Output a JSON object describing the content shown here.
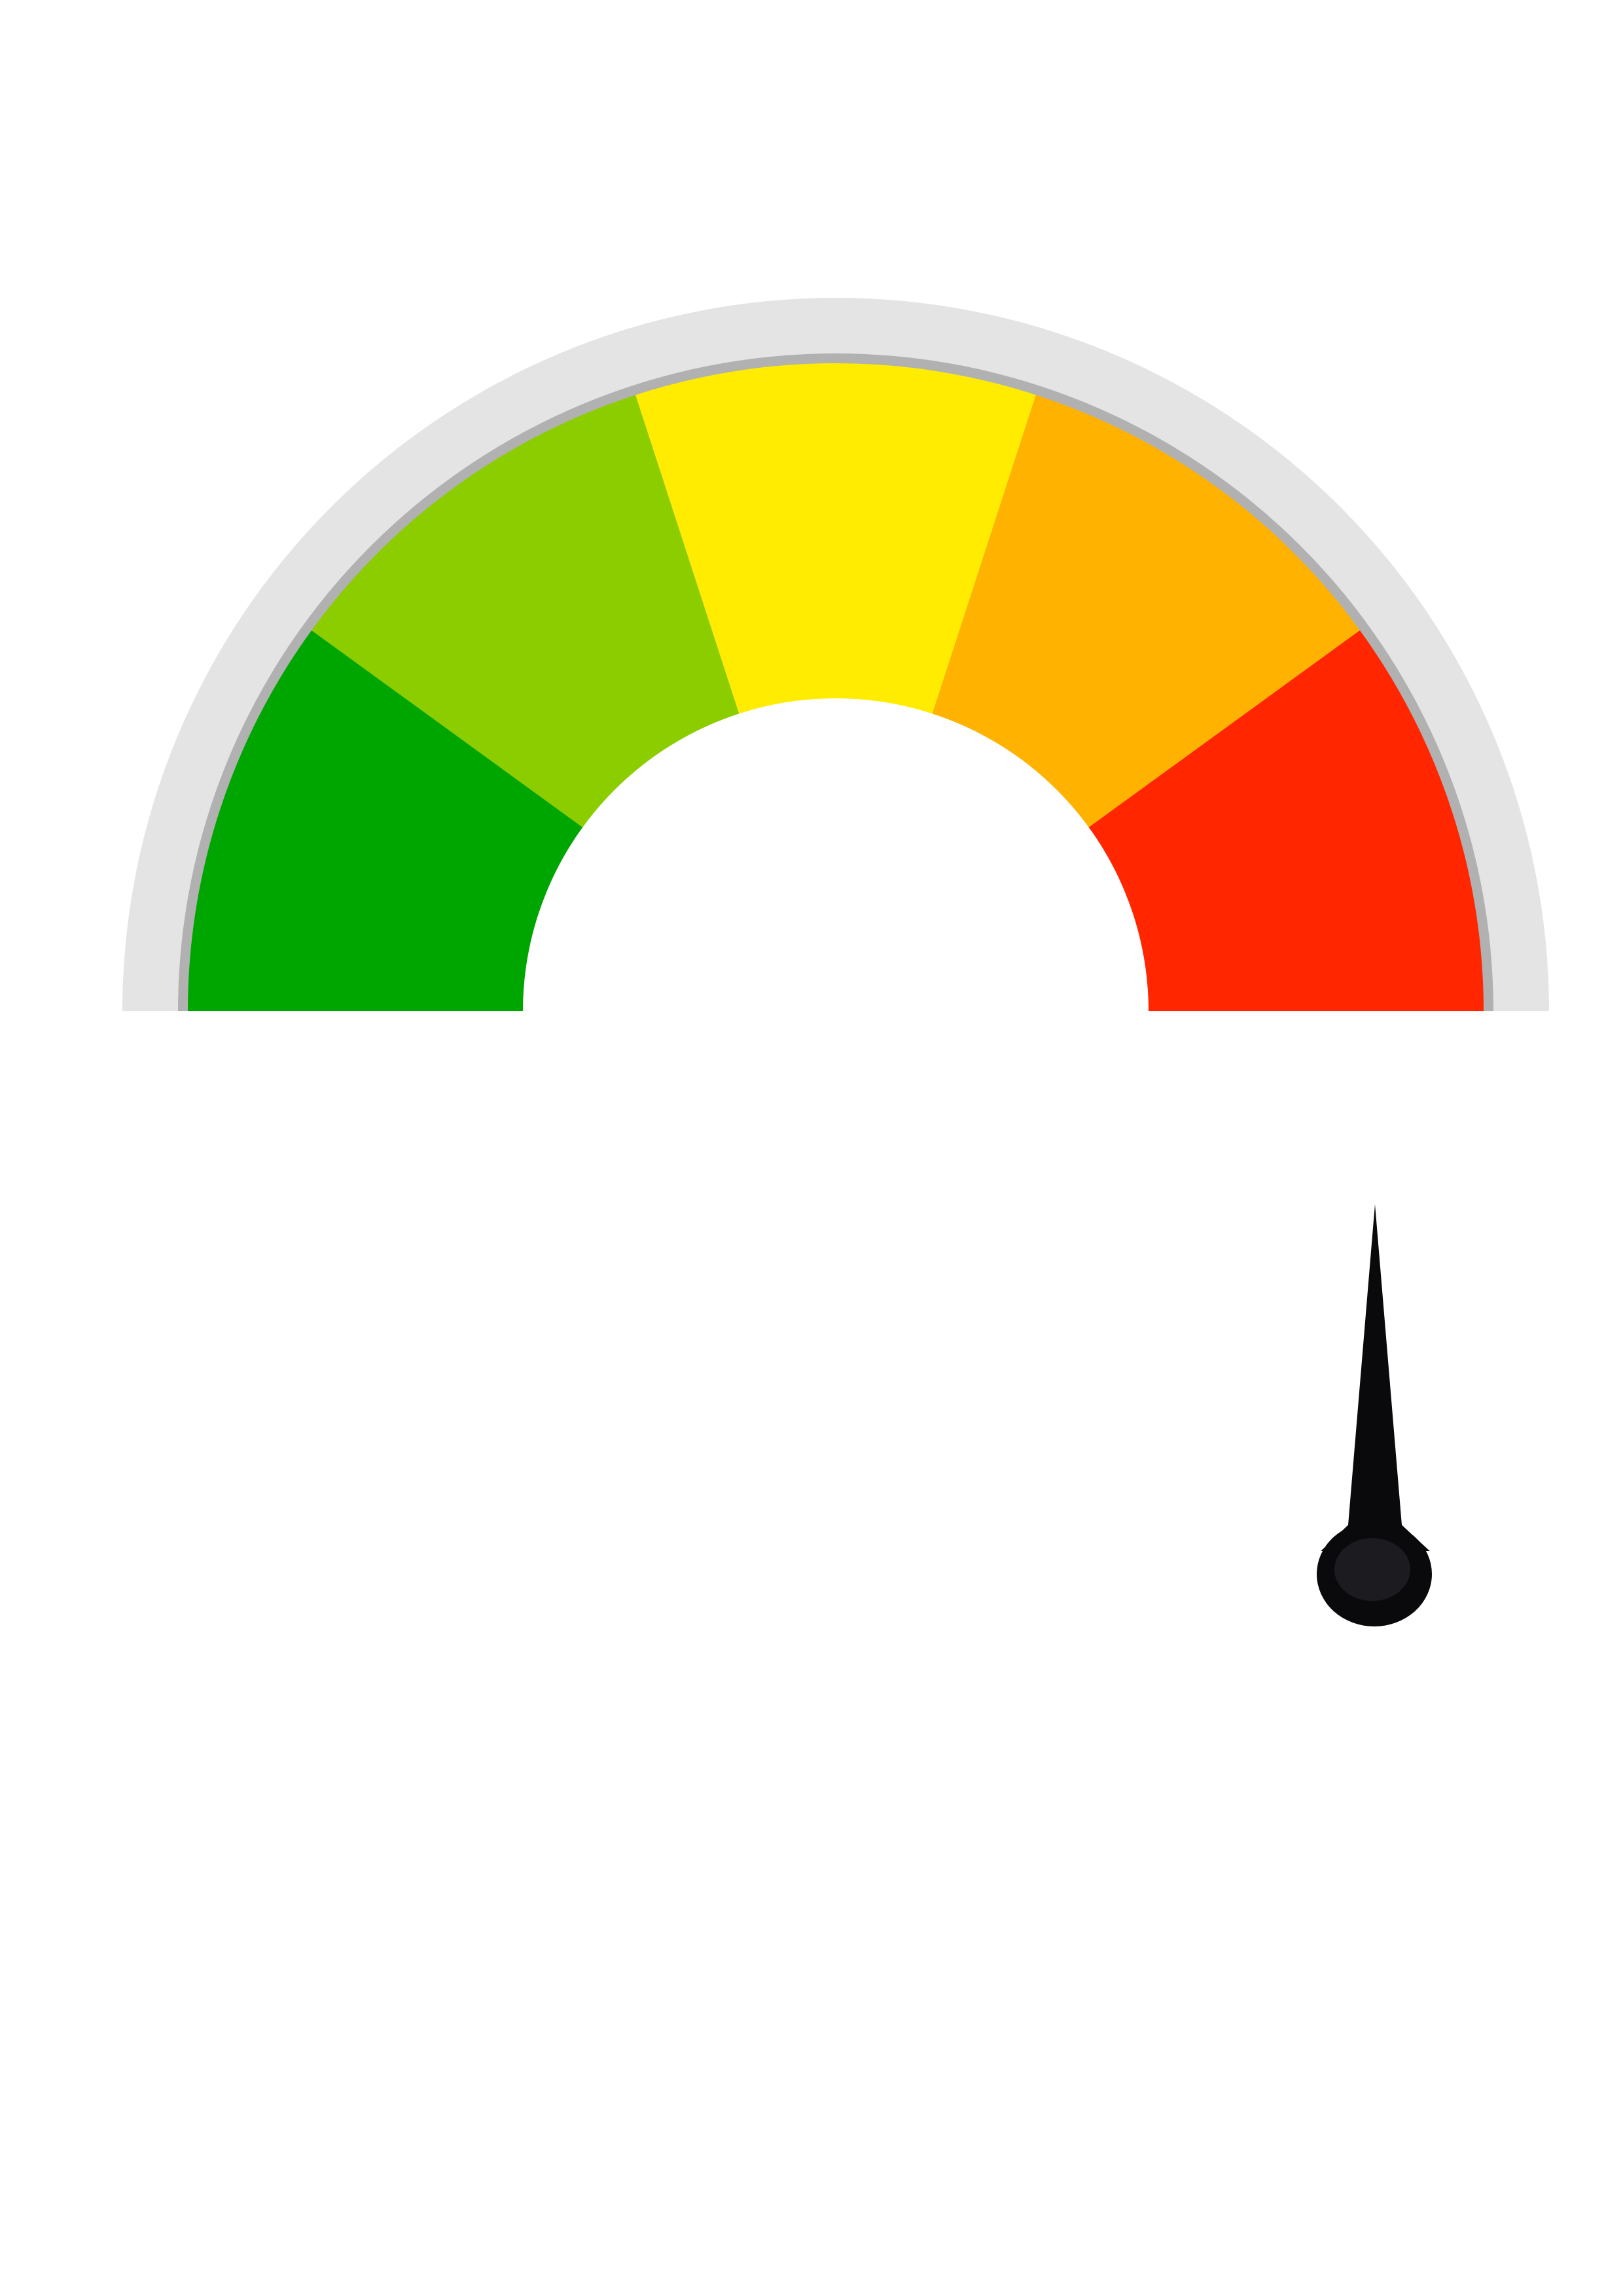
{
  "gauge": {
    "segments": [
      {
        "name": "green",
        "color": "#00A600"
      },
      {
        "name": "light-green",
        "color": "#8CCD00"
      },
      {
        "name": "yellow",
        "color": "#FFEC00"
      },
      {
        "name": "orange",
        "color": "#FFB200"
      },
      {
        "name": "red",
        "color": "#FF2600"
      }
    ],
    "outer_band_color": "#E4E4E4",
    "rim_color": "#B1B1B1",
    "hub_color": "#FFFFFF"
  },
  "needle": {
    "color": "#0A0A0C",
    "direction": "up",
    "detached": true
  }
}
